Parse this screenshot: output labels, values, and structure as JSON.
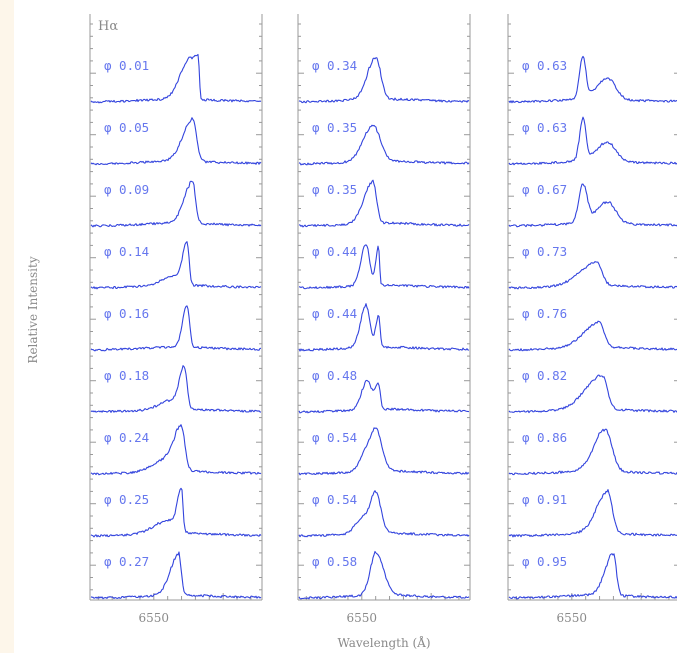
{
  "chart_data": {
    "type": "line",
    "title": "",
    "xlabel": "Wavelength (Å)",
    "ylabel": "Relative Intensity",
    "line_label": "Hα",
    "xtick_label": "6550",
    "xlim": [
      6527,
      6589
    ],
    "colors": {
      "trace": "#3344dd",
      "phase_text": "#6677ee",
      "axis": "#9a9a9a"
    },
    "panels": [
      {
        "name": "left",
        "spectra": [
          {
            "phase": "φ 0.01",
            "peaks": [
              {
                "c": 6562,
                "h": 0.8,
                "w": 3.0,
                "r": 0.55
              },
              {
                "c": 6566,
                "h": 1.0,
                "w": 2.0,
                "r": 0.2
              }
            ]
          },
          {
            "phase": "φ 0.05",
            "peaks": [
              {
                "c": 6564,
                "h": 1.0,
                "w": 3.5,
                "r": 0.4
              }
            ]
          },
          {
            "phase": "φ 0.09",
            "peaks": [
              {
                "c": 6564,
                "h": 1.0,
                "w": 3.0,
                "r": 0.35
              }
            ]
          },
          {
            "phase": "φ 0.14",
            "peaks": [
              {
                "c": 6562,
                "h": 1.0,
                "w": 1.6,
                "r": 0.45
              },
              {
                "c": 6557,
                "h": 0.22,
                "w": 4.0,
                "r": 0.6
              }
            ]
          },
          {
            "phase": "φ 0.16",
            "peaks": [
              {
                "c": 6562,
                "h": 1.0,
                "w": 1.6,
                "r": 0.55
              }
            ]
          },
          {
            "phase": "φ 0.18",
            "peaks": [
              {
                "c": 6561,
                "h": 1.0,
                "w": 1.8,
                "r": 0.55
              },
              {
                "c": 6556,
                "h": 0.2,
                "w": 4.0,
                "r": 0.6
              }
            ]
          },
          {
            "phase": "φ 0.24",
            "peaks": [
              {
                "c": 6560,
                "h": 1.0,
                "w": 2.5,
                "r": 0.5
              },
              {
                "c": 6555,
                "h": 0.3,
                "w": 5.0,
                "r": 0.6
              }
            ]
          },
          {
            "phase": "φ 0.25",
            "peaks": [
              {
                "c": 6560,
                "h": 1.0,
                "w": 1.5,
                "r": 0.35
              },
              {
                "c": 6555,
                "h": 0.3,
                "w": 5.0,
                "r": 0.6
              }
            ]
          },
          {
            "phase": "φ 0.27",
            "peaks": [
              {
                "c": 6559,
                "h": 1.0,
                "w": 3.0,
                "r": 0.3
              }
            ]
          }
        ]
      },
      {
        "name": "middle",
        "spectra": [
          {
            "phase": "φ 0.34",
            "peaks": [
              {
                "c": 6555,
                "h": 1.0,
                "w": 3.0,
                "r": 0.6
              }
            ]
          },
          {
            "phase": "φ 0.35",
            "peaks": [
              {
                "c": 6554,
                "h": 0.85,
                "w": 3.5,
                "r": 0.75
              }
            ]
          },
          {
            "phase": "φ 0.35",
            "peaks": [
              {
                "c": 6554,
                "h": 1.0,
                "w": 3.2,
                "r": 0.4
              }
            ]
          },
          {
            "phase": "φ 0.44",
            "peaks": [
              {
                "c": 6551.5,
                "h": 1.0,
                "w": 1.8,
                "r": 0.7
              },
              {
                "c": 6556,
                "h": 0.9,
                "w": 1.0,
                "r": 0.4
              }
            ]
          },
          {
            "phase": "φ 0.44",
            "peaks": [
              {
                "c": 6551.5,
                "h": 1.0,
                "w": 2.0,
                "r": 0.7
              },
              {
                "c": 6556,
                "h": 0.75,
                "w": 1.0,
                "r": 0.6
              }
            ]
          },
          {
            "phase": "φ 0.48",
            "peaks": [
              {
                "c": 6552,
                "h": 0.7,
                "w": 2.0,
                "r": 0.7
              },
              {
                "c": 6556,
                "h": 0.6,
                "w": 1.3,
                "r": 0.5
              }
            ]
          },
          {
            "phase": "φ 0.54",
            "peaks": [
              {
                "c": 6555,
                "h": 1.0,
                "w": 2.0,
                "r": 1.1
              },
              {
                "c": 6551,
                "h": 0.4,
                "w": 2.0,
                "r": 0.8
              }
            ]
          },
          {
            "phase": "φ 0.54",
            "peaks": [
              {
                "c": 6555,
                "h": 1.0,
                "w": 2.0,
                "r": 0.9
              },
              {
                "c": 6550,
                "h": 0.35,
                "w": 2.5,
                "r": 0.8
              }
            ]
          },
          {
            "phase": "φ 0.58",
            "peaks": [
              {
                "c": 6555,
                "h": 1.0,
                "w": 2.0,
                "r": 1.4
              }
            ]
          }
        ]
      },
      {
        "name": "right",
        "spectra": [
          {
            "phase": "φ 0.63",
            "peaks": [
              {
                "c": 6554,
                "h": 1.0,
                "w": 1.2,
                "r": 0.9
              },
              {
                "c": 6563,
                "h": 0.5,
                "w": 4.0,
                "r": 0.7
              }
            ]
          },
          {
            "phase": "φ 0.63",
            "peaks": [
              {
                "c": 6554,
                "h": 1.0,
                "w": 1.2,
                "r": 0.9
              },
              {
                "c": 6563,
                "h": 0.45,
                "w": 4.0,
                "r": 0.7
              }
            ]
          },
          {
            "phase": "φ 0.67",
            "peaks": [
              {
                "c": 6554,
                "h": 0.9,
                "w": 1.5,
                "r": 1.0
              },
              {
                "c": 6563,
                "h": 0.5,
                "w": 4.0,
                "r": 0.7
              }
            ]
          },
          {
            "phase": "φ 0.73",
            "peaks": [
              {
                "c": 6559,
                "h": 0.55,
                "w": 6.0,
                "r": 0.3
              }
            ]
          },
          {
            "phase": "φ 0.76",
            "peaks": [
              {
                "c": 6560,
                "h": 0.6,
                "w": 5.5,
                "r": 0.3
              }
            ]
          },
          {
            "phase": "φ 0.82",
            "peaks": [
              {
                "c": 6561,
                "h": 0.8,
                "w": 6.0,
                "r": 0.3
              }
            ]
          },
          {
            "phase": "φ 0.86",
            "peaks": [
              {
                "c": 6562,
                "h": 1.0,
                "w": 4.0,
                "r": 0.6
              }
            ]
          },
          {
            "phase": "φ 0.91",
            "peaks": [
              {
                "c": 6563,
                "h": 1.0,
                "w": 4.0,
                "r": 0.4
              }
            ]
          },
          {
            "phase": "φ 0.95",
            "peaks": [
              {
                "c": 6565,
                "h": 1.0,
                "w": 3.0,
                "r": 0.35
              }
            ]
          }
        ]
      }
    ]
  }
}
